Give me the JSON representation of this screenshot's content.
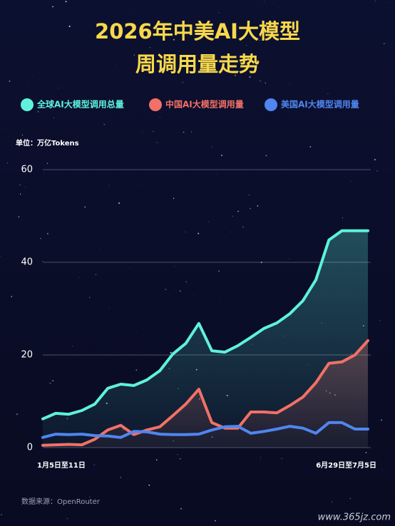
{
  "chart_data": {
    "type": "line",
    "title": [
      "2026年中美AI大模型",
      "周调用量走势"
    ],
    "y_label": "单位：万亿Tokens",
    "source": "数据来源：OpenRouter",
    "watermark": "www.365jz.com",
    "categories": [
      "1月5日至11日",
      null,
      null,
      null,
      null,
      null,
      null,
      null,
      null,
      null,
      null,
      null,
      null,
      null,
      null,
      null,
      null,
      null,
      null,
      null,
      null,
      null,
      null,
      null,
      null,
      "6月29日至7月5日"
    ],
    "series": [
      {
        "name": "全球AI大模型调用总量",
        "color": "#5ef2dc",
        "values": [
          6.2,
          7.4,
          7.2,
          8,
          9.4,
          12.8,
          13.7,
          13.4,
          14.6,
          16.6,
          20.2,
          22.5,
          26.8,
          20.9,
          20.6,
          22,
          23.8,
          25.7,
          26.9,
          28.9,
          31.7,
          36.2,
          44.8,
          46.8,
          46.8,
          46.8
        ]
      },
      {
        "name": "中国AI大模型调用量",
        "color": "#f27166",
        "values": [
          0.5,
          0.6,
          0.7,
          0.6,
          1.8,
          3.8,
          4.8,
          2.8,
          3.8,
          4.5,
          6.9,
          9.4,
          12.6,
          5.4,
          4.2,
          4.2,
          7.7,
          7.7,
          7.5,
          9.1,
          10.9,
          14,
          18.2,
          18.5,
          20,
          23.1
        ]
      },
      {
        "name": "美国AI大模型调用量",
        "color": "#4f86f0",
        "values": [
          2.2,
          2.9,
          2.8,
          2.9,
          2.6,
          2.5,
          2.2,
          3.5,
          3.4,
          2.9,
          2.8,
          2.8,
          2.9,
          3.8,
          4.5,
          4.6,
          3.1,
          3.5,
          4,
          4.6,
          4.2,
          3.1,
          5.4,
          5.4,
          4,
          4
        ]
      }
    ],
    "ylim": [
      0,
      60
    ],
    "yticks": [
      0,
      20,
      40,
      60
    ],
    "grid": true
  }
}
